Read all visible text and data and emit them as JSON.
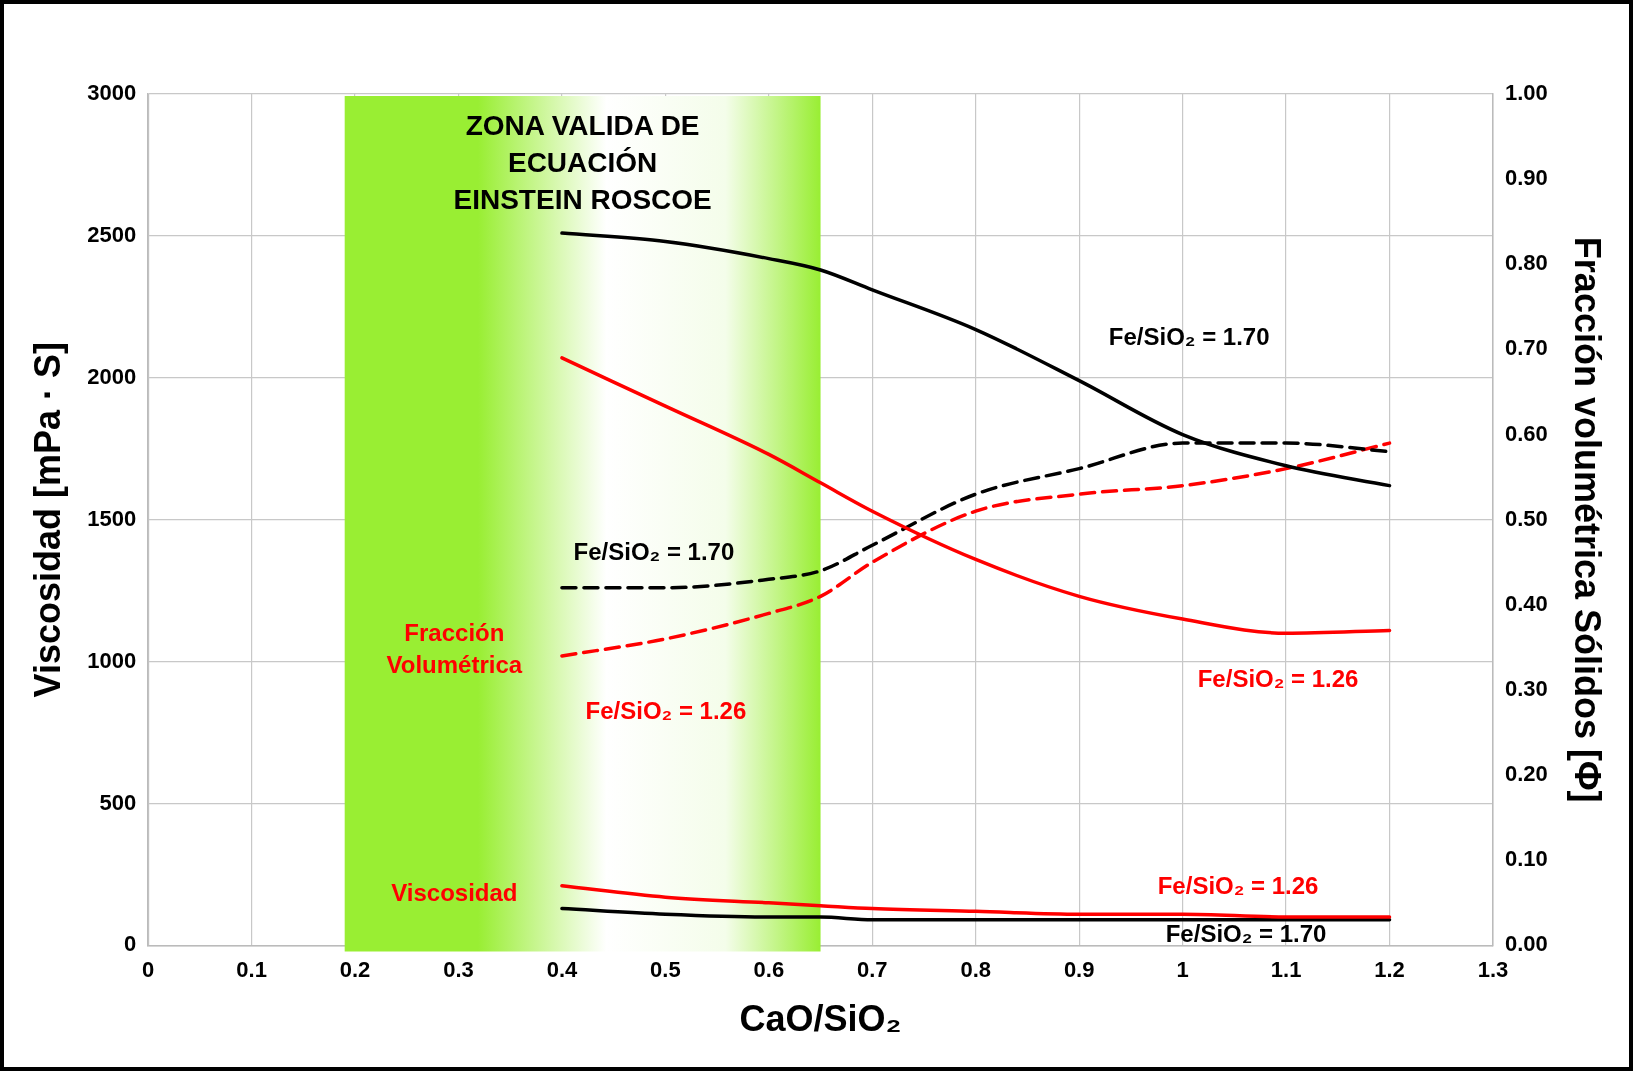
{
  "chart_data": {
    "type": "line",
    "xlabel": "CaO/SiO₂",
    "ylabel": "Viscosidad [mPa · S]",
    "y2label": "Fracción volumétrica Sólidos [Φ]",
    "x": [
      0.4,
      0.5,
      0.6,
      0.65,
      0.7,
      0.8,
      0.9,
      1.0,
      1.1,
      1.2
    ],
    "series": [
      {
        "name": "Fe/SiO₂ = 1.70",
        "color": "#000000",
        "values": [
          2510,
          2480,
          2420,
          2380,
          2310,
          2170,
          1990,
          1800,
          1690,
          1620
        ]
      },
      {
        "name": "Fe/SiO₂ = 1.26",
        "color": "#ff0000",
        "values": [
          2070,
          1900,
          1730,
          1630,
          1530,
          1360,
          1230,
          1150,
          1100,
          1110
        ]
      },
      {
        "name": "Fe/SiO₂ = 1.70",
        "color": "#000000",
        "axis": "y2",
        "line_style": "dashed",
        "values": [
          0.42,
          0.42,
          0.43,
          0.44,
          0.47,
          0.53,
          0.56,
          0.59,
          0.59,
          0.58
        ]
      },
      {
        "name": "Fe/SiO₂ = 1.26",
        "color": "#ff0000",
        "axis": "y2",
        "line_style": "dashed",
        "values": [
          0.34,
          0.36,
          0.39,
          0.41,
          0.45,
          0.51,
          0.53,
          0.54,
          0.56,
          0.59
        ]
      },
      {
        "name": "Fe/SiO₂ = 1.26",
        "color": "#ff0000",
        "values": [
          210,
          170,
          150,
          140,
          130,
          120,
          110,
          110,
          100,
          100
        ]
      },
      {
        "name": "Fe/SiO₂ = 1.70",
        "color": "#000000",
        "values": [
          130,
          110,
          100,
          100,
          90,
          90,
          90,
          90,
          90,
          90
        ]
      }
    ],
    "xlim": [
      0,
      1.3
    ],
    "xticks": [
      0,
      0.1,
      0.2,
      0.3,
      0.4,
      0.5,
      0.6,
      0.7,
      0.8,
      0.9,
      1,
      1.1,
      1.2,
      1.3
    ],
    "ylim": [
      0,
      3000
    ],
    "yticks": [
      0,
      500,
      1000,
      1500,
      2000,
      2500,
      3000
    ],
    "y2lim": [
      0,
      1
    ],
    "y2ticks": [
      {
        "value": 0,
        "label": "0.00"
      },
      {
        "value": 0.1,
        "label": "0.10"
      },
      {
        "value": 0.2,
        "label": "0.20"
      },
      {
        "value": 0.3,
        "label": "0.30"
      },
      {
        "value": 0.4,
        "label": "0.40"
      },
      {
        "value": 0.5,
        "label": "0.50"
      },
      {
        "value": 0.6,
        "label": "0.60"
      },
      {
        "value": 0.7,
        "label": "0.70"
      },
      {
        "value": 0.8,
        "label": "0.80"
      },
      {
        "value": 0.9,
        "label": "0.90"
      },
      {
        "value": 1,
        "label": "1.00"
      }
    ],
    "bands": [
      {
        "axis": "x",
        "from": 0.19,
        "to": 0.65,
        "label": "ZONA VALIDA DE\nECUACIÓN\nEINSTEIN ROSCOE",
        "color": "#99ee33"
      }
    ],
    "annotations": [
      "Fracción\nVolumétrica",
      "Viscosidad"
    ],
    "grid": true,
    "legend": false,
    "marker": "none",
    "line_style": "solid"
  }
}
